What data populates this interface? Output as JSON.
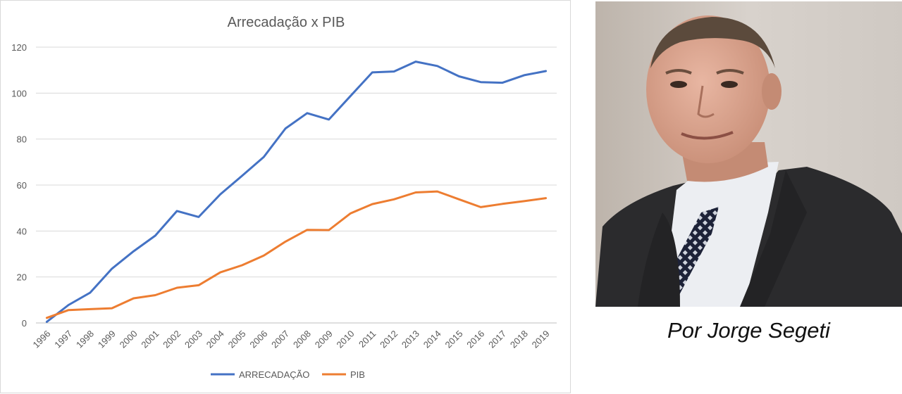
{
  "caption": "Por Jorge Segeti",
  "photo": {
    "icon": "portrait-photo"
  },
  "chart_data": {
    "type": "line",
    "title": "Arrecadação x PIB",
    "xlabel": "",
    "ylabel": "",
    "ylim": [
      0,
      120
    ],
    "yticks": [
      0,
      20,
      40,
      60,
      80,
      100,
      120
    ],
    "grid": true,
    "legend_position": "bottom",
    "categories": [
      "1996",
      "1997",
      "1998",
      "1999",
      "2000",
      "2001",
      "2002",
      "2003",
      "2004",
      "2005",
      "2006",
      "2007",
      "2008",
      "2009",
      "2010",
      "2011",
      "2012",
      "2013",
      "2014",
      "2015",
      "2016",
      "2017",
      "2018",
      "2019"
    ],
    "series": [
      {
        "name": "ARRECADAÇÃO",
        "color": "#4472c4",
        "values": [
          0.5,
          7.8,
          13.2,
          23.6,
          31.2,
          38.0,
          48.7,
          46.1,
          56.0,
          64.0,
          72.2,
          84.6,
          91.3,
          88.5,
          98.8,
          109.0,
          109.4,
          113.7,
          111.8,
          107.3,
          104.8,
          104.5,
          107.8,
          109.6
        ]
      },
      {
        "name": "PIB",
        "color": "#ed7d31",
        "values": [
          2.2,
          5.6,
          6.0,
          6.4,
          10.7,
          12.1,
          15.3,
          16.4,
          22.0,
          25.1,
          29.3,
          35.4,
          40.5,
          40.4,
          47.7,
          51.7,
          53.8,
          56.8,
          57.2,
          53.8,
          50.4,
          51.8,
          53.0,
          54.3
        ]
      }
    ]
  }
}
